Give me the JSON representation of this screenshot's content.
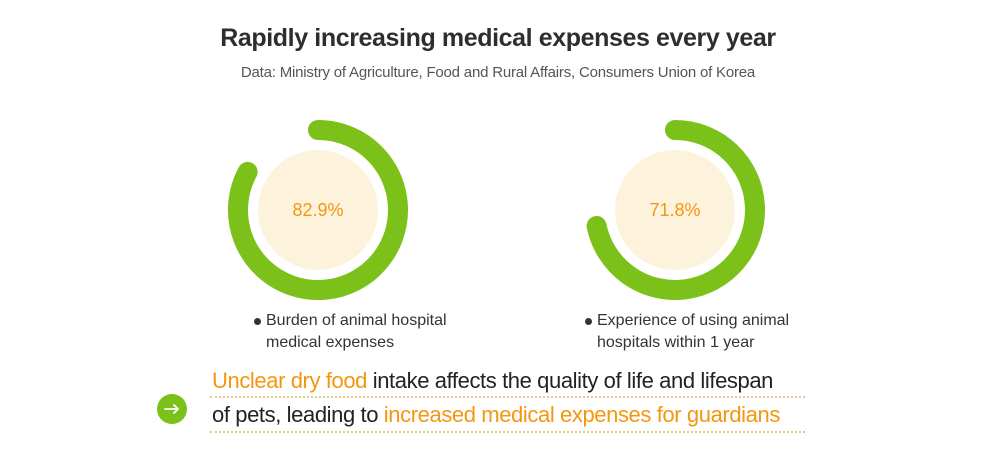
{
  "header": {
    "title": "Rapidly increasing medical expenses every year",
    "source": "Data: Ministry of Agriculture, Food and Rural Affairs, Consumers Union of Korea"
  },
  "chart_data": [
    {
      "type": "donut",
      "value": 82.9,
      "max": 100,
      "value_label": "82.9%",
      "caption_lines": [
        "Burden of animal hospital",
        "medical expenses"
      ]
    },
    {
      "type": "donut",
      "value": 71.8,
      "max": 100,
      "value_label": "71.8%",
      "caption_lines": [
        "Experience of using animal",
        "hospitals within 1 year"
      ]
    }
  ],
  "conclusion": {
    "line1": {
      "highlight": "Unclear dry food",
      "text": " intake affects the quality of life and lifespan"
    },
    "line2": {
      "text": "of pets, leading to ",
      "highlight": "increased medical expenses for guardians"
    }
  },
  "colors": {
    "ring": "#7bc11a",
    "inner_fill": "#fdf3dc",
    "accent": "#f5960f",
    "dotted_line": "#e3c88a"
  },
  "icons": {
    "conclusion": "arrow-right-icon"
  }
}
